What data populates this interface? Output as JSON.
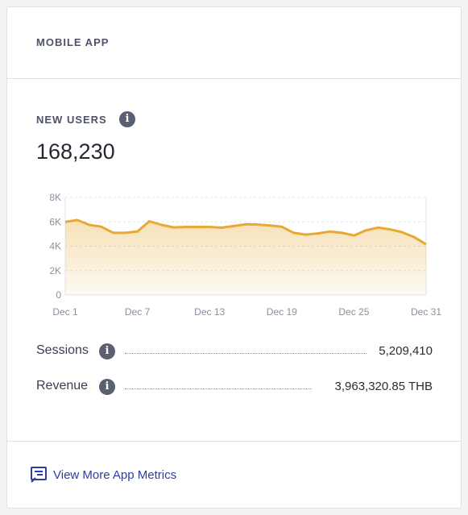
{
  "card": {
    "title": "MOBILE APP",
    "metric": {
      "label": "NEW USERS",
      "info_icon": "info-icon",
      "value": "168,230"
    },
    "stats": [
      {
        "label": "Sessions",
        "value": "5,209,410",
        "info_icon": "info-icon"
      },
      {
        "label": "Revenue",
        "value": "3,963,320.85 THB",
        "info_icon": "info-icon"
      }
    ],
    "footer": {
      "link_label": "View More App Metrics",
      "link_icon": "app-metrics-icon"
    }
  },
  "colors": {
    "accent": "#e8a832",
    "link": "#2b3fa3",
    "info_icon_bg": "#5a5f72"
  },
  "chart_data": {
    "type": "area",
    "y_tick_labels": [
      "8K",
      "6K",
      "4K",
      "2K",
      "0"
    ],
    "x_tick_labels": [
      "Dec 1",
      "Dec 7",
      "Dec 13",
      "Dec 19",
      "Dec 25",
      "Dec 31"
    ],
    "ylim": [
      0,
      8000
    ],
    "grid": true,
    "x": [
      1,
      2,
      3,
      4,
      5,
      6,
      7,
      8,
      9,
      10,
      11,
      12,
      13,
      14,
      15,
      16,
      17,
      18,
      19,
      20,
      21,
      22,
      23,
      24,
      25,
      26,
      27,
      28,
      29,
      30,
      31
    ],
    "values": [
      6000,
      6150,
      5750,
      5600,
      5100,
      5100,
      5200,
      6050,
      5750,
      5550,
      5580,
      5580,
      5580,
      5520,
      5650,
      5800,
      5780,
      5700,
      5600,
      5100,
      4950,
      5050,
      5200,
      5100,
      4880,
      5300,
      5530,
      5380,
      5150,
      4750,
      4150
    ]
  }
}
